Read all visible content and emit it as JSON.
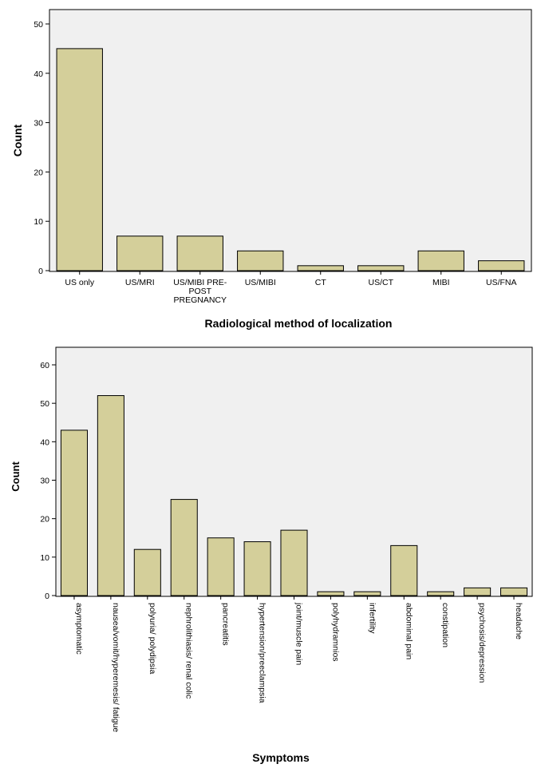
{
  "chart_data": [
    {
      "type": "bar",
      "categories": [
        "US only",
        "US/MRI",
        "US/MIBI PRE-POST PREGNANCY",
        "US/MIBI",
        "CT",
        "US/CT",
        "MIBI",
        "US/FNA"
      ],
      "category_lines": [
        [
          "US only"
        ],
        [
          "US/MRI"
        ],
        [
          "US/MIBI PRE-",
          "POST",
          "PREGNANCY"
        ],
        [
          "US/MIBI"
        ],
        [
          "CT"
        ],
        [
          "US/CT"
        ],
        [
          "MIBI"
        ],
        [
          "US/FNA"
        ]
      ],
      "values": [
        45,
        7,
        7,
        4,
        1,
        1,
        4,
        2
      ],
      "xlabel": "Radiological method of localization",
      "ylabel": "Count",
      "ylim": [
        0,
        50
      ],
      "yticks": [
        0,
        10,
        20,
        30,
        40,
        50
      ],
      "grid": false,
      "bar_color": "#d4cf9a",
      "background": "#f0f0f0"
    },
    {
      "type": "bar",
      "categories": [
        "asymptomatic",
        "nausea/vomit/hyperemesis/ fatigue",
        "polyuria/ polydipsia",
        "nephrolithiasis/ renal colic",
        "pancreatitis",
        "hypertension/preeclampsia",
        "joint/muscle pain",
        "polyhydramnios",
        "infertility",
        "abdominal pain",
        "constipation",
        "psychosis/depression",
        "headache"
      ],
      "values": [
        43,
        52,
        12,
        25,
        15,
        14,
        17,
        1,
        1,
        13,
        1,
        2,
        2
      ],
      "xlabel": "Symptoms",
      "ylabel": "Count",
      "ylim": [
        0,
        60
      ],
      "yticks": [
        0,
        10,
        20,
        30,
        40,
        50,
        60
      ],
      "grid": false,
      "bar_color": "#d4cf9a",
      "background": "#f0f0f0"
    }
  ]
}
